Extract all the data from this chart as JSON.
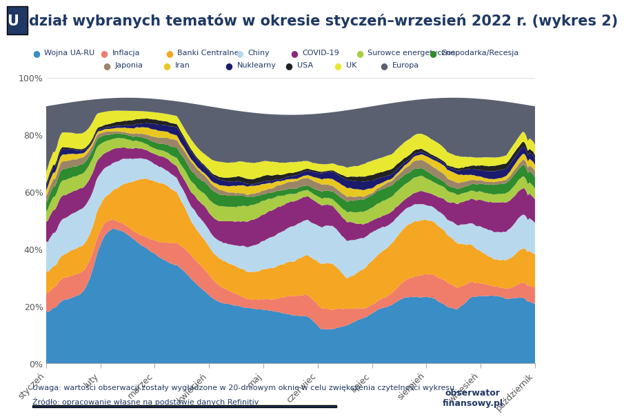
{
  "title_rest": "dział wybranych tematów w okresie styczeń–wrzesień 2022 r. (wykres 2)",
  "title_prefix": "U",
  "footnote1": "Uwaga: wartości obserwacji zostały wygładzone w 20-dniowym oknie w celu zwiększenia czytelności wykresu.",
  "footnote2": "Źródło: opracowanie własne na podstawie danych Refinitiv",
  "x_labels": [
    "styczeń",
    "luty",
    "marzec",
    "kwiecień",
    "maj",
    "czerwiec",
    "lipiec",
    "sierpień",
    "wrzesień",
    "październik"
  ],
  "y_ticks_vals": [
    0.0,
    0.2,
    0.4,
    0.6,
    0.8,
    1.0
  ],
  "y_ticks_labels": [
    "0%",
    "20%",
    "40%",
    "60%",
    "80%",
    "100%"
  ],
  "series": [
    {
      "name": "Wojna UA-RU",
      "color": "#3A8DC5"
    },
    {
      "name": "Inflacja",
      "color": "#F07C6A"
    },
    {
      "name": "Banki Centralne",
      "color": "#F5A623"
    },
    {
      "name": "Chiny",
      "color": "#B8D9ED"
    },
    {
      "name": "COVID-19",
      "color": "#8B2A7A"
    },
    {
      "name": "Surowce energetyczne",
      "color": "#AACC44"
    },
    {
      "name": "Gospodarka/Recesja",
      "color": "#2E8B2E"
    },
    {
      "name": "Japonia",
      "color": "#9B8567"
    },
    {
      "name": "Iran",
      "color": "#E8C820"
    },
    {
      "name": "Nuklearny",
      "color": "#1A1A6E"
    },
    {
      "name": "USA",
      "color": "#222222"
    },
    {
      "name": "UK",
      "color": "#E8E830"
    },
    {
      "name": "Europa",
      "color": "#5A6070"
    }
  ],
  "background_color": "#FFFFFF",
  "plot_bg_color": "#FFFFFF",
  "title_box_color": "#1F3864",
  "text_color": "#1F3864",
  "n_points": 274
}
